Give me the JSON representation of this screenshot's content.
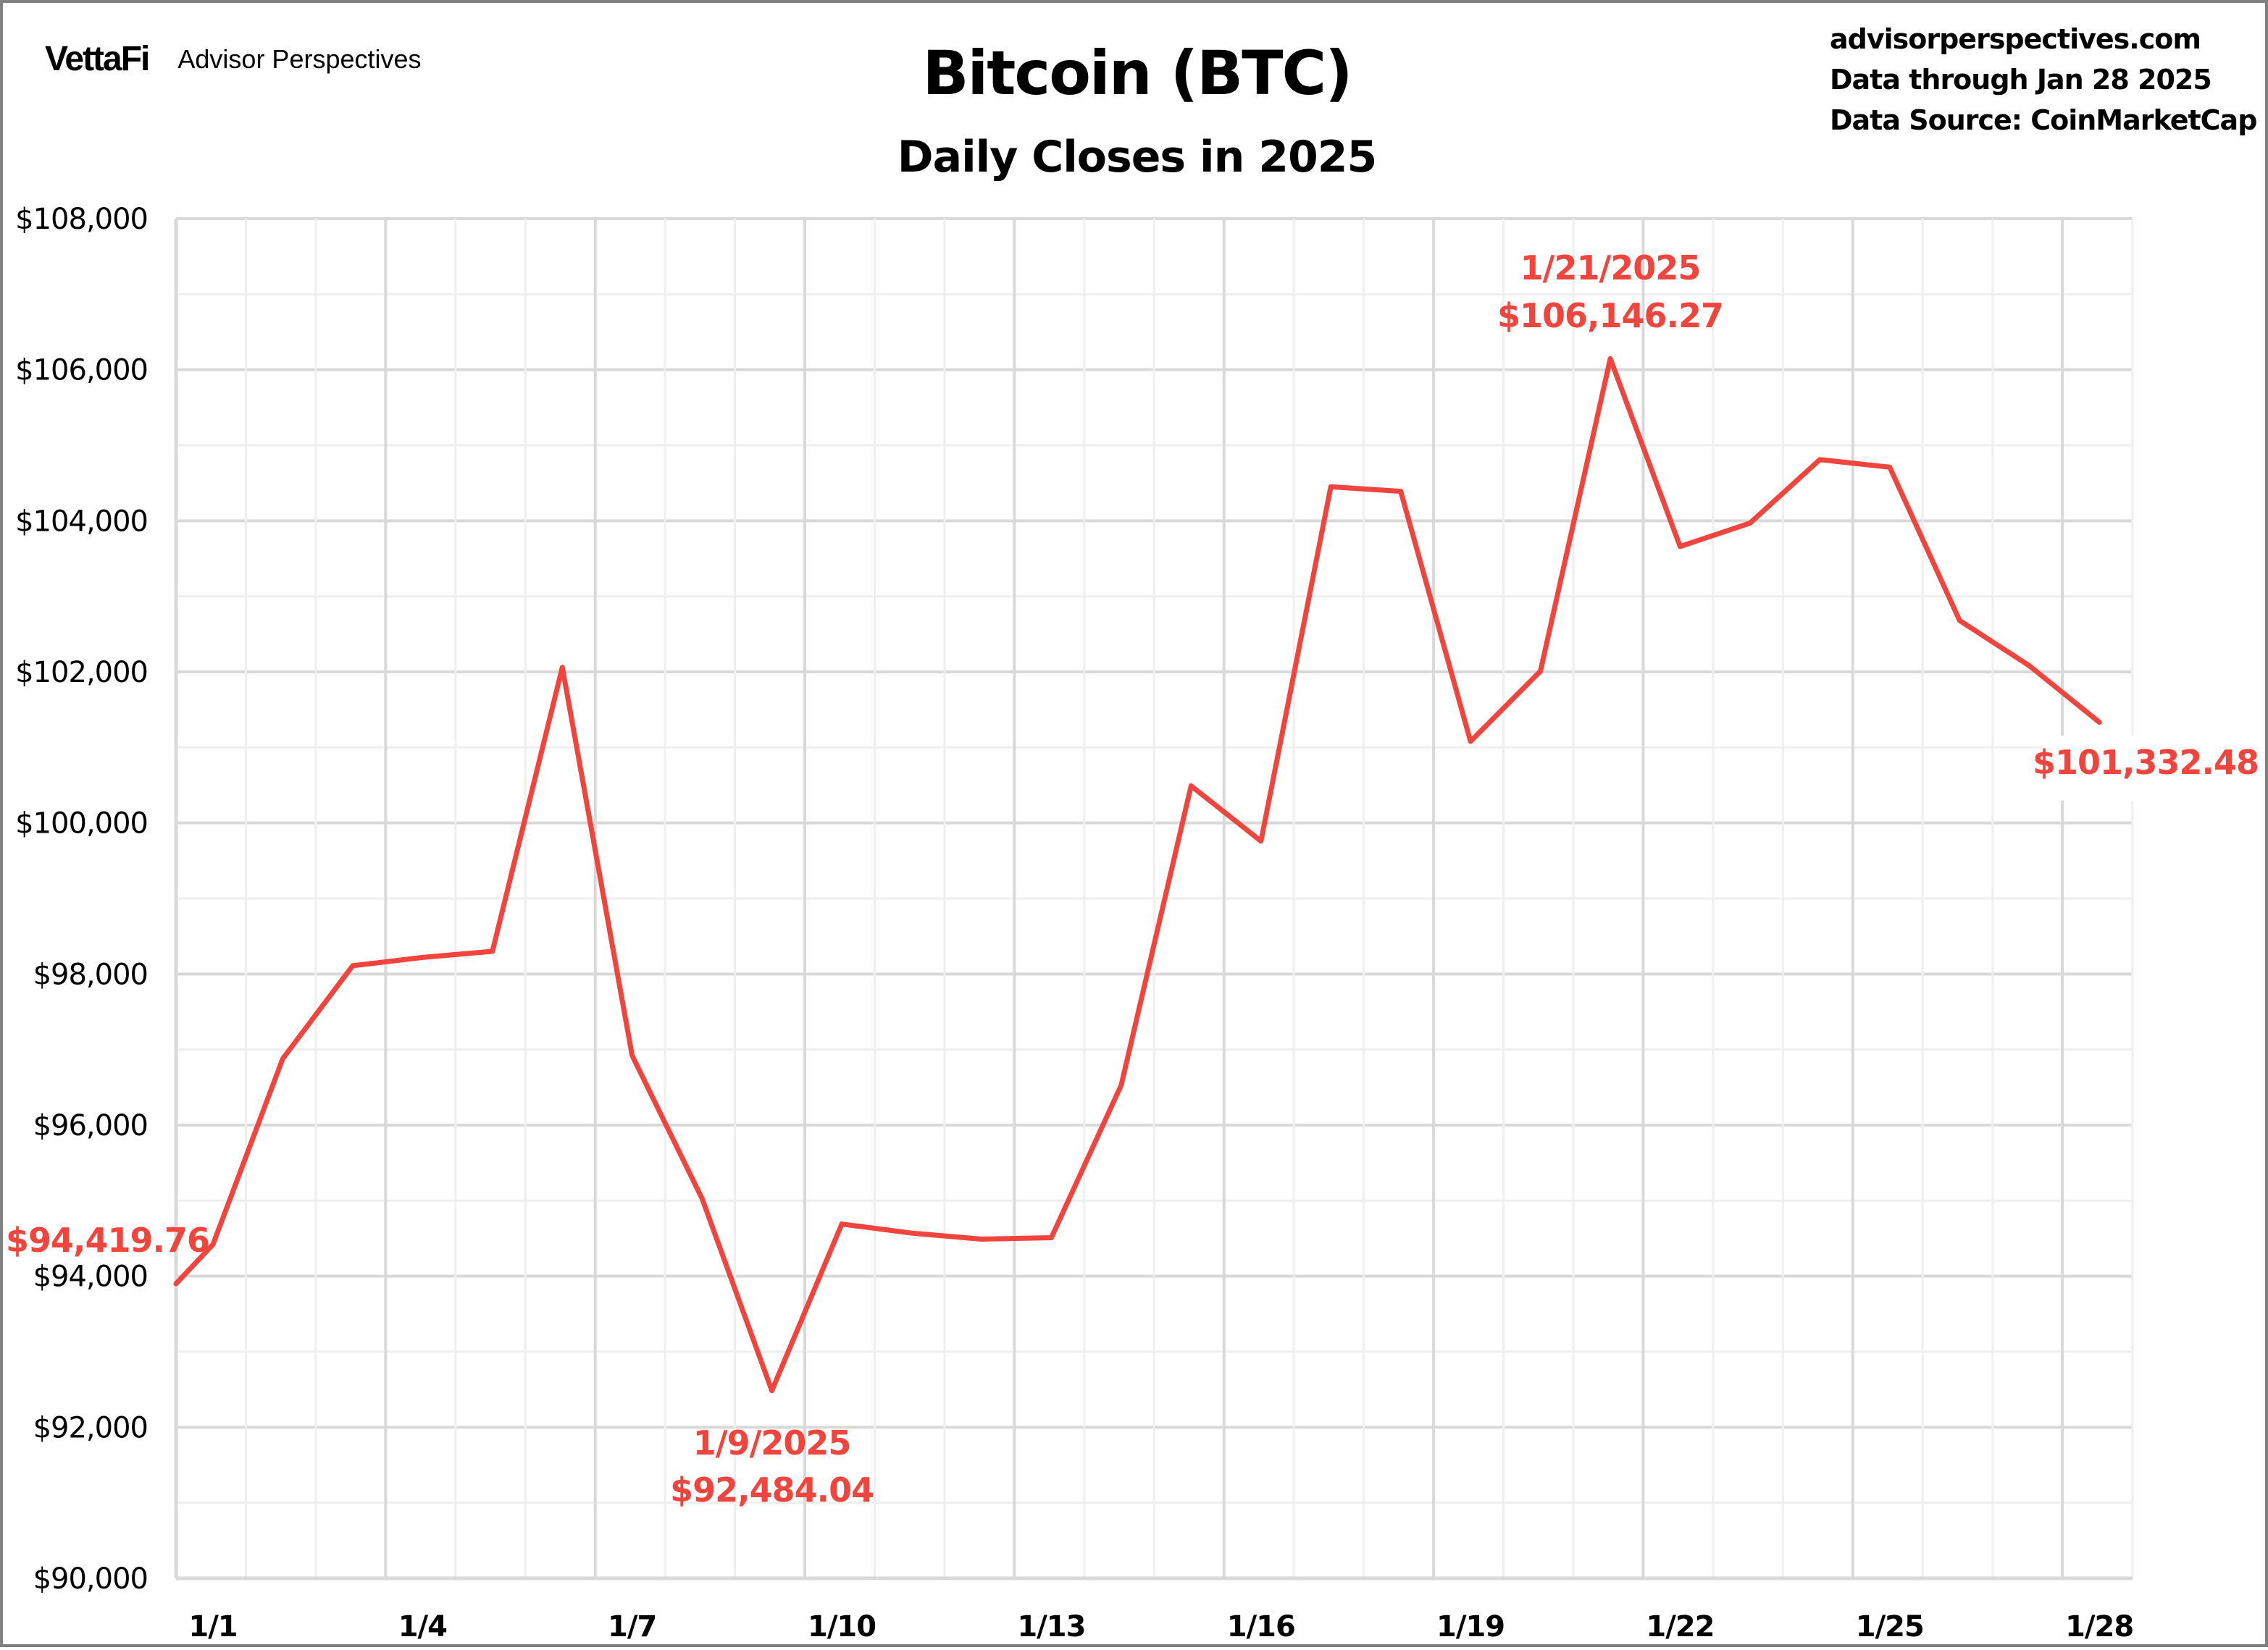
{
  "brand": {
    "logo": "VettaFi",
    "name": "Advisor Perspectives"
  },
  "header": {
    "title": "Bitcoin (BTC)",
    "subtitle": "Daily Closes in 2025",
    "source_lines": [
      "advisorperspectives.com",
      "Data through Jan 28 2025",
      "Data Source: CoinMarketCap"
    ]
  },
  "colors": {
    "line": "#f0443c",
    "grid_major": "#d9d9d9",
    "grid_minor": "#efefef",
    "frame": "#808080"
  },
  "chart_data": {
    "type": "line",
    "title": "Bitcoin (BTC)",
    "subtitle": "Daily Closes in 2025",
    "xlabel": "",
    "ylabel": "",
    "ylim": [
      90000,
      108000
    ],
    "grid": true,
    "legend": null,
    "y_ticks": [
      "$90,000",
      "$92,000",
      "$94,000",
      "$96,000",
      "$98,000",
      "$100,000",
      "$102,000",
      "$104,000",
      "$106,000",
      "$108,000"
    ],
    "x_ticks": [
      "1/1",
      "1/4",
      "1/7",
      "1/10",
      "1/13",
      "1/16",
      "1/19",
      "1/22",
      "1/25",
      "1/28"
    ],
    "x": [
      "12/31",
      "1/1",
      "1/2",
      "1/3",
      "1/4",
      "1/5",
      "1/6",
      "1/7",
      "1/8",
      "1/9",
      "1/10",
      "1/11",
      "1/12",
      "1/13",
      "1/14",
      "1/15",
      "1/16",
      "1/17",
      "1/18",
      "1/19",
      "1/20",
      "1/21",
      "1/22",
      "1/23",
      "1/24",
      "1/25",
      "1/26",
      "1/27",
      "1/28"
    ],
    "series": [
      {
        "name": "Bitcoin (BTC) Daily Close",
        "values": [
          93900,
          94419.76,
          96880,
          98110,
          98220,
          98300,
          102060,
          96920,
          95030,
          92484.04,
          94690,
          94570,
          94490,
          94510,
          96530,
          100490,
          99760,
          104450,
          104390,
          101080,
          102010,
          106146.27,
          103660,
          103970,
          104810,
          104710,
          102680,
          102080,
          101332.48
        ]
      }
    ],
    "annotations": [
      {
        "label": "$94,419.76",
        "date": "1/1/2025",
        "value": 94419.76
      },
      {
        "label": "1/9/2025",
        "label2": "$92,484.04",
        "date": "1/9/2025",
        "value": 92484.04
      },
      {
        "label": "1/21/2025",
        "label2": "$106,146.27",
        "date": "1/21/2025",
        "value": 106146.27
      },
      {
        "label": "$101,332.48",
        "date": "1/28/2025",
        "value": 101332.48
      }
    ]
  }
}
